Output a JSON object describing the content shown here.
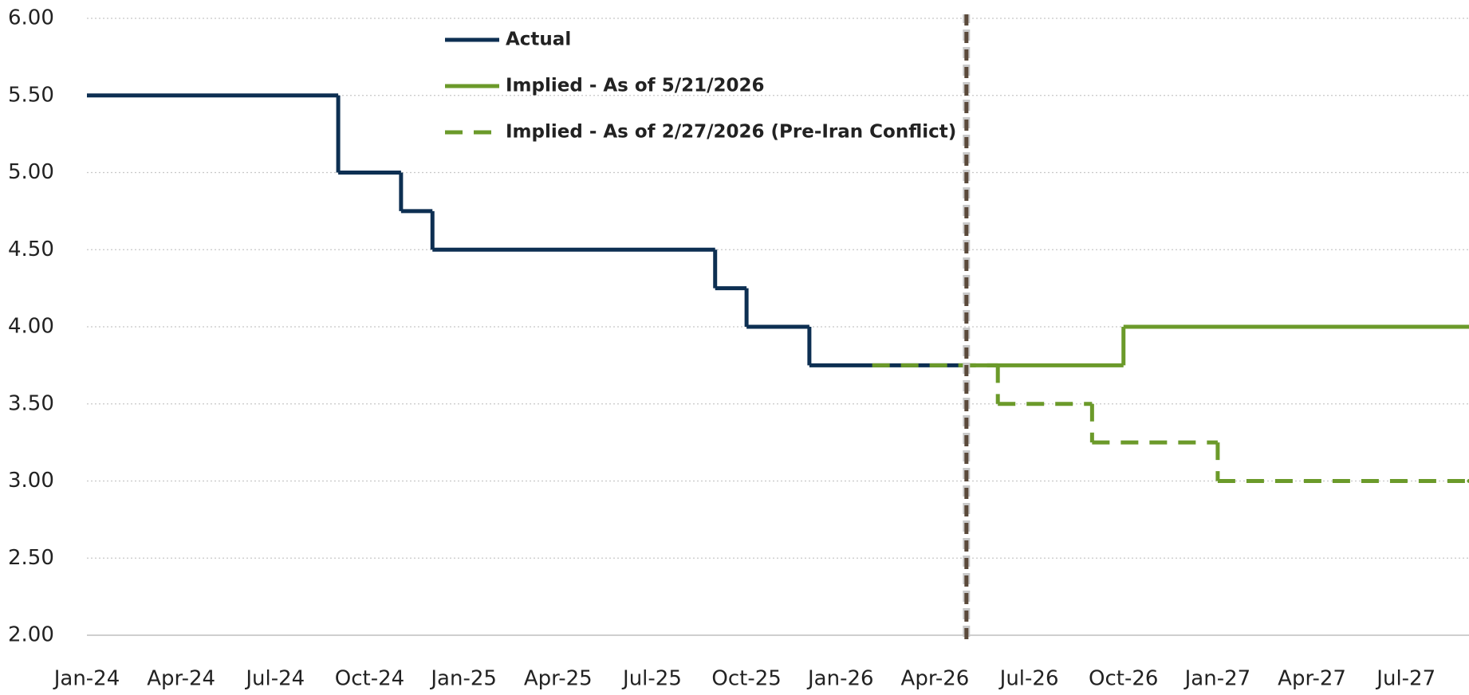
{
  "chart_data": {
    "type": "step",
    "xlim": [
      "2024-01",
      "2027-09"
    ],
    "xticks": [
      {
        "value": "2024-01",
        "label": "Jan-24"
      },
      {
        "value": "2024-04",
        "label": "Apr-24"
      },
      {
        "value": "2024-07",
        "label": "Jul-24"
      },
      {
        "value": "2024-10",
        "label": "Oct-24"
      },
      {
        "value": "2025-01",
        "label": "Jan-25"
      },
      {
        "value": "2025-04",
        "label": "Apr-25"
      },
      {
        "value": "2025-07",
        "label": "Jul-25"
      },
      {
        "value": "2025-10",
        "label": "Oct-25"
      },
      {
        "value": "2026-01",
        "label": "Jan-26"
      },
      {
        "value": "2026-04",
        "label": "Apr-26"
      },
      {
        "value": "2026-07",
        "label": "Jul-26"
      },
      {
        "value": "2026-10",
        "label": "Oct-26"
      },
      {
        "value": "2027-01",
        "label": "Jan-27"
      },
      {
        "value": "2027-04",
        "label": "Apr-27"
      },
      {
        "value": "2027-07",
        "label": "Jul-27"
      }
    ],
    "ylim": [
      2,
      6
    ],
    "yticks": [
      {
        "value": 2,
        "label": "2.00"
      },
      {
        "value": 2.5,
        "label": "2.50"
      },
      {
        "value": 3,
        "label": "3.00"
      },
      {
        "value": 3.5,
        "label": "3.50"
      },
      {
        "value": 4,
        "label": "4.00"
      },
      {
        "value": 4.5,
        "label": "4.50"
      },
      {
        "value": 5,
        "label": "5.00"
      },
      {
        "value": 5.5,
        "label": "5.50"
      },
      {
        "value": 6,
        "label": "6.00"
      }
    ],
    "grid": true,
    "vline": {
      "x": "2026-05",
      "color": "#5b4a3b"
    },
    "series": [
      {
        "name": "Actual",
        "color": "#0d2f52",
        "dash": false,
        "x": [
          "2024-01",
          "2024-09",
          "2024-11",
          "2024-12",
          "2025-09",
          "2025-10",
          "2025-12",
          "2026-05"
        ],
        "values": [
          5.5,
          5.0,
          4.75,
          4.5,
          4.25,
          4.0,
          3.75,
          3.75
        ]
      },
      {
        "name": "Implied - As of 5/21/2026",
        "color": "#6b9a2a",
        "dash": false,
        "x": [
          "2026-05",
          "2026-10",
          "2027-09"
        ],
        "values": [
          3.75,
          4.0,
          4.0
        ]
      },
      {
        "name": "Implied - As of 2/27/2026 (Pre-Iran Conflict)",
        "color": "#6b9a2a",
        "dash": true,
        "x": [
          "2026-02",
          "2026-06",
          "2026-09",
          "2027-01",
          "2027-09"
        ],
        "values": [
          3.75,
          3.5,
          3.25,
          3.0,
          3.0
        ]
      }
    ]
  }
}
